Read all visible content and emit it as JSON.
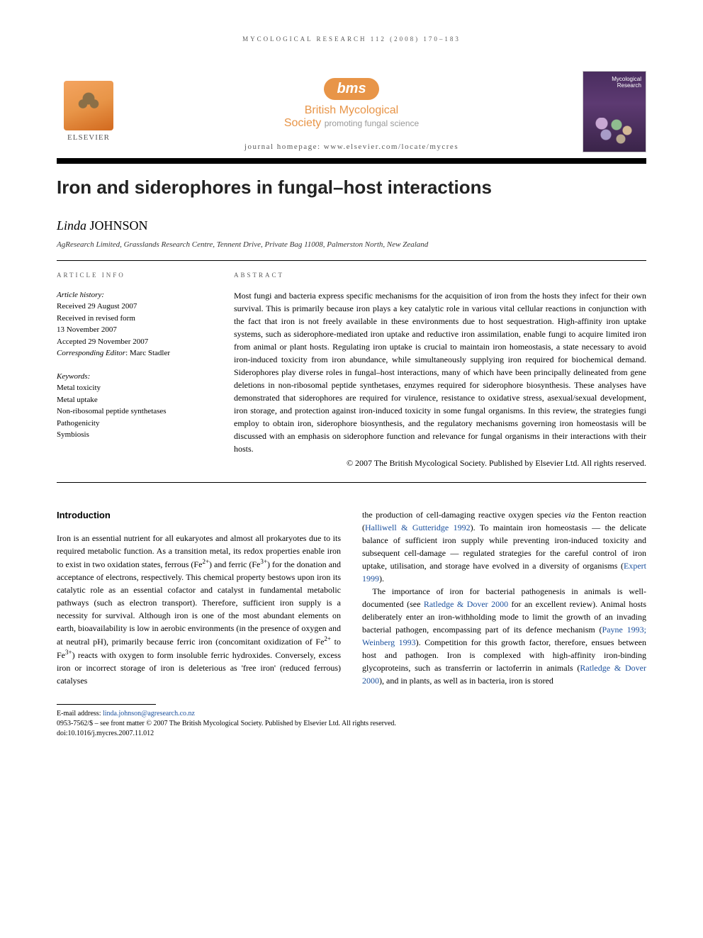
{
  "running_header": "MYCOLOGICAL RESEARCH 112 (2008) 170–183",
  "publisher": {
    "name": "ELSEVIER",
    "society_logo": "bms",
    "society_name": "British Mycological",
    "society_sub": "Society",
    "society_tagline": "promoting fungal science",
    "homepage_label": "journal homepage: www.elsevier.com/locate/mycres"
  },
  "cover": {
    "title_line1": "Mycological",
    "title_line2": "Research"
  },
  "article": {
    "title": "Iron and siderophores in fungal–host interactions",
    "author_given": "Linda",
    "author_surname": "JOHNSON",
    "affiliation": "AgResearch Limited, Grasslands Research Centre, Tennent Drive, Private Bag 11008, Palmerston North, New Zealand"
  },
  "info": {
    "heading": "ARTICLE INFO",
    "history_label": "Article history:",
    "received": "Received 29 August 2007",
    "revised_label": "Received in revised form",
    "revised_date": "13 November 2007",
    "accepted": "Accepted 29 November 2007",
    "corresponding_label": "Corresponding Editor",
    "corresponding_value": ": Marc Stadler",
    "keywords_label": "Keywords:",
    "keywords": [
      "Metal toxicity",
      "Metal uptake",
      "Non-ribosomal peptide synthetases",
      "Pathogenicity",
      "Symbiosis"
    ]
  },
  "abstract": {
    "heading": "ABSTRACT",
    "text": "Most fungi and bacteria express specific mechanisms for the acquisition of iron from the hosts they infect for their own survival. This is primarily because iron plays a key catalytic role in various vital cellular reactions in conjunction with the fact that iron is not freely available in these environments due to host sequestration. High-affinity iron uptake systems, such as siderophore-mediated iron uptake and reductive iron assimilation, enable fungi to acquire limited iron from animal or plant hosts. Regulating iron uptake is crucial to maintain iron homeostasis, a state necessary to avoid iron-induced toxicity from iron abundance, while simultaneously supplying iron required for biochemical demand. Siderophores play diverse roles in fungal–host interactions, many of which have been principally delineated from gene deletions in non-ribosomal peptide synthetases, enzymes required for siderophore biosynthesis. These analyses have demonstrated that siderophores are required for virulence, resistance to oxidative stress, asexual/sexual development, iron storage, and protection against iron-induced toxicity in some fungal organisms. In this review, the strategies fungi employ to obtain iron, siderophore biosynthesis, and the regulatory mechanisms governing iron homeostasis will be discussed with an emphasis on siderophore function and relevance for fungal organisms in their interactions with their hosts.",
    "copyright": "© 2007 The British Mycological Society. Published by Elsevier Ltd. All rights reserved."
  },
  "body": {
    "section_heading": "Introduction",
    "col1_p1_a": "Iron is an essential nutrient for all eukaryotes and almost all prokaryotes due to its required metabolic function. As a transition metal, its redox properties enable iron to exist in two oxidation states, ferrous (Fe",
    "col1_p1_b": ") and ferric (Fe",
    "col1_p1_c": ") for the donation and acceptance of electrons, respectively. This chemical property bestows upon iron its catalytic role as an essential cofactor and catalyst in fundamental metabolic pathways (such as electron transport). Therefore, sufficient iron supply is a necessity for survival. Although iron is one of the most abundant elements on earth, bioavailability is low in aerobic environments (in the presence of oxygen and at neutral pH), primarily because ferric iron (concomitant oxidization of Fe",
    "col1_p1_d": " to Fe",
    "col1_p1_e": ") reacts with oxygen to form insoluble ferric hydroxides. Conversely, excess iron or incorrect storage of iron is deleterious as 'free iron' (reduced ferrous) catalyses",
    "col2_p1_a": "the production of cell-damaging reactive oxygen species ",
    "col2_p1_via": "via",
    "col2_p1_b": " the Fenton reaction (",
    "cite1": "Halliwell & Gutteridge 1992",
    "col2_p1_c": "). To maintain iron homeostasis — the delicate balance of sufficient iron supply while preventing iron-induced toxicity and subsequent cell-damage — regulated strategies for the careful control of iron uptake, utilisation, and storage have evolved in a diversity of organisms (",
    "cite2": "Expert 1999",
    "col2_p1_d": ").",
    "col2_p2_a": "The importance of iron for bacterial pathogenesis in animals is well-documented (see ",
    "cite3": "Ratledge & Dover 2000",
    "col2_p2_b": " for an excellent review). Animal hosts deliberately enter an iron-withholding mode to limit the growth of an invading bacterial pathogen, encompassing part of its defence mechanism (",
    "cite4": "Payne 1993; Weinberg 1993",
    "col2_p2_c": "). Competition for this growth factor, therefore, ensues between host and pathogen. Iron is complexed with high-affinity iron-binding glycoproteins, such as transferrin or lactoferrin in animals (",
    "cite5": "Ratledge & Dover 2000",
    "col2_p2_d": "), and in plants, as well as in bacteria, iron is stored"
  },
  "footer": {
    "email_label": "E-mail address: ",
    "email": "linda.johnson@agresearch.co.nz",
    "line1": "0953-7562/$ – see front matter © 2007 The British Mycological Society. Published by Elsevier Ltd. All rights reserved.",
    "line2": "doi:10.1016/j.mycres.2007.11.012"
  },
  "colors": {
    "accent_orange": "#e89548",
    "link_blue": "#1a4f9c",
    "cover_purple": "#4a2d5f",
    "text_gray": "#5a5a5a"
  }
}
